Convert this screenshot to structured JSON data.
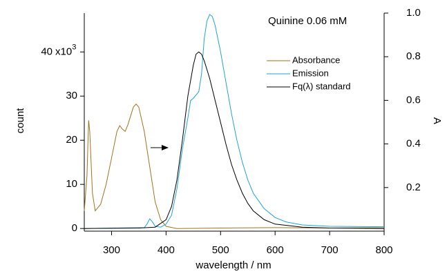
{
  "chart_data": {
    "type": "line",
    "title": "Quinine 0.06 mM",
    "x_label": "wavelength / nm",
    "y_label": "count",
    "y2_label": "A",
    "y_multiplier": "x10",
    "y_multiplier_exp": "3",
    "xlim": [
      250,
      800
    ],
    "xticks": [
      300,
      400,
      500,
      600,
      700,
      800
    ],
    "ylim": [
      -0.6,
      48.8
    ],
    "yticks": [
      0,
      10,
      20,
      30,
      40
    ],
    "y2lim": [
      0,
      1
    ],
    "y2ticks": [
      0.2,
      0.4,
      0.6,
      0.8,
      {
        "value": 1,
        "label": "1.0"
      }
    ],
    "series": [
      {
        "name": "Absorbance",
        "color": "#a2711e",
        "x": [
          250,
          255,
          258,
          260,
          265,
          270,
          280,
          290,
          300,
          310,
          315,
          320,
          325,
          330,
          340,
          345,
          350,
          360,
          370,
          380,
          390,
          400,
          420,
          500,
          600,
          700,
          800
        ],
        "values": [
          4,
          12,
          24.5,
          22,
          8,
          4,
          5.5,
          10,
          16,
          22,
          23.3,
          22.5,
          22,
          23.5,
          27.5,
          28.2,
          27.5,
          22,
          14,
          6,
          2,
          0.5,
          0,
          0.1,
          0.2,
          0.1,
          0.2
        ]
      },
      {
        "name": "Emission",
        "color": "#1fa3d8",
        "x": [
          250,
          360,
          365,
          370,
          375,
          380,
          390,
          400,
          410,
          420,
          430,
          440,
          445,
          450,
          460,
          465,
          470,
          475,
          480,
          485,
          490,
          500,
          510,
          520,
          530,
          540,
          550,
          560,
          580,
          600,
          620,
          650,
          700,
          800
        ],
        "values": [
          0,
          0.2,
          1,
          2.2,
          1.5,
          0.5,
          0.3,
          1,
          3,
          9,
          18,
          25,
          29,
          29.5,
          31,
          35,
          43,
          47,
          48.5,
          48,
          46,
          40,
          33,
          26,
          20,
          15,
          11,
          8,
          4.5,
          2.5,
          1.5,
          0.8,
          0.5,
          0.4
        ]
      },
      {
        "name": "Fq(λ) standard",
        "color": "#000000",
        "x": [
          250,
          350,
          380,
          400,
          410,
          420,
          430,
          440,
          450,
          455,
          460,
          465,
          470,
          480,
          490,
          500,
          510,
          520,
          530,
          540,
          550,
          560,
          580,
          600,
          650,
          700,
          800
        ],
        "values": [
          0,
          0.1,
          0.3,
          2,
          5,
          11,
          20,
          30,
          37,
          39.5,
          40,
          39.5,
          38,
          34,
          29,
          24,
          19,
          14.5,
          11,
          8,
          5.7,
          4,
          2,
          1,
          0.3,
          0.1,
          0
        ]
      }
    ]
  }
}
